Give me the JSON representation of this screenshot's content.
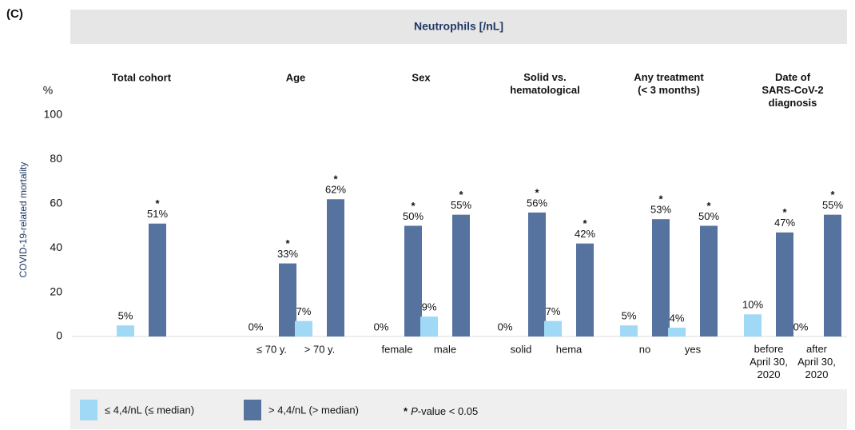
{
  "chart_data": {
    "type": "bar",
    "panel_label": "(C)",
    "title": "Neutrophils [/nL]",
    "y_label": "COVID-19-related mortality",
    "y_unit": "%",
    "ylim": [
      0,
      100
    ],
    "yticks": [
      0,
      20,
      40,
      60,
      80,
      100
    ],
    "groups": [
      {
        "name": "Total cohort",
        "categories": [
          null
        ]
      },
      {
        "name": "Age",
        "categories": [
          "≤ 70 y.",
          "> 70 y."
        ]
      },
      {
        "name": "Sex",
        "categories": [
          "female",
          "male"
        ]
      },
      {
        "name": "Solid vs.\nhematological",
        "categories": [
          "solid",
          "hema"
        ]
      },
      {
        "name": "Any treatment\n(< 3 months)",
        "categories": [
          "no",
          "yes"
        ]
      },
      {
        "name": "Date of\nSARS-CoV-2\ndiagnosis",
        "categories": [
          "before\nApril 30,\n2020",
          "after\nApril 30,\n2020"
        ]
      }
    ],
    "series": [
      {
        "name": "≤ 4,4/nL (≤ median)",
        "color": "#9fd9f5",
        "values": [
          5,
          0,
          7,
          0,
          9,
          0,
          7,
          5,
          4,
          10,
          0
        ],
        "value_labels": [
          "5%",
          "0%",
          "7%",
          "0%",
          "9%",
          "0%",
          "7%",
          "5%",
          "4%",
          "10%",
          "0%"
        ]
      },
      {
        "name": "> 4,4/nL (> median)",
        "color": "#56729f",
        "values": [
          51,
          33,
          62,
          50,
          55,
          56,
          42,
          53,
          50,
          47,
          55
        ],
        "value_labels": [
          "51%",
          "33%",
          "62%",
          "50%",
          "55%",
          "56%",
          "42%",
          "53%",
          "50%",
          "47%",
          "55%"
        ],
        "significance": [
          "*",
          "*",
          "*",
          "*",
          "*",
          "*",
          "*",
          "*",
          "*",
          "*",
          "*"
        ]
      }
    ],
    "note": [
      "*",
      "P",
      "-value < 0.05"
    ]
  }
}
